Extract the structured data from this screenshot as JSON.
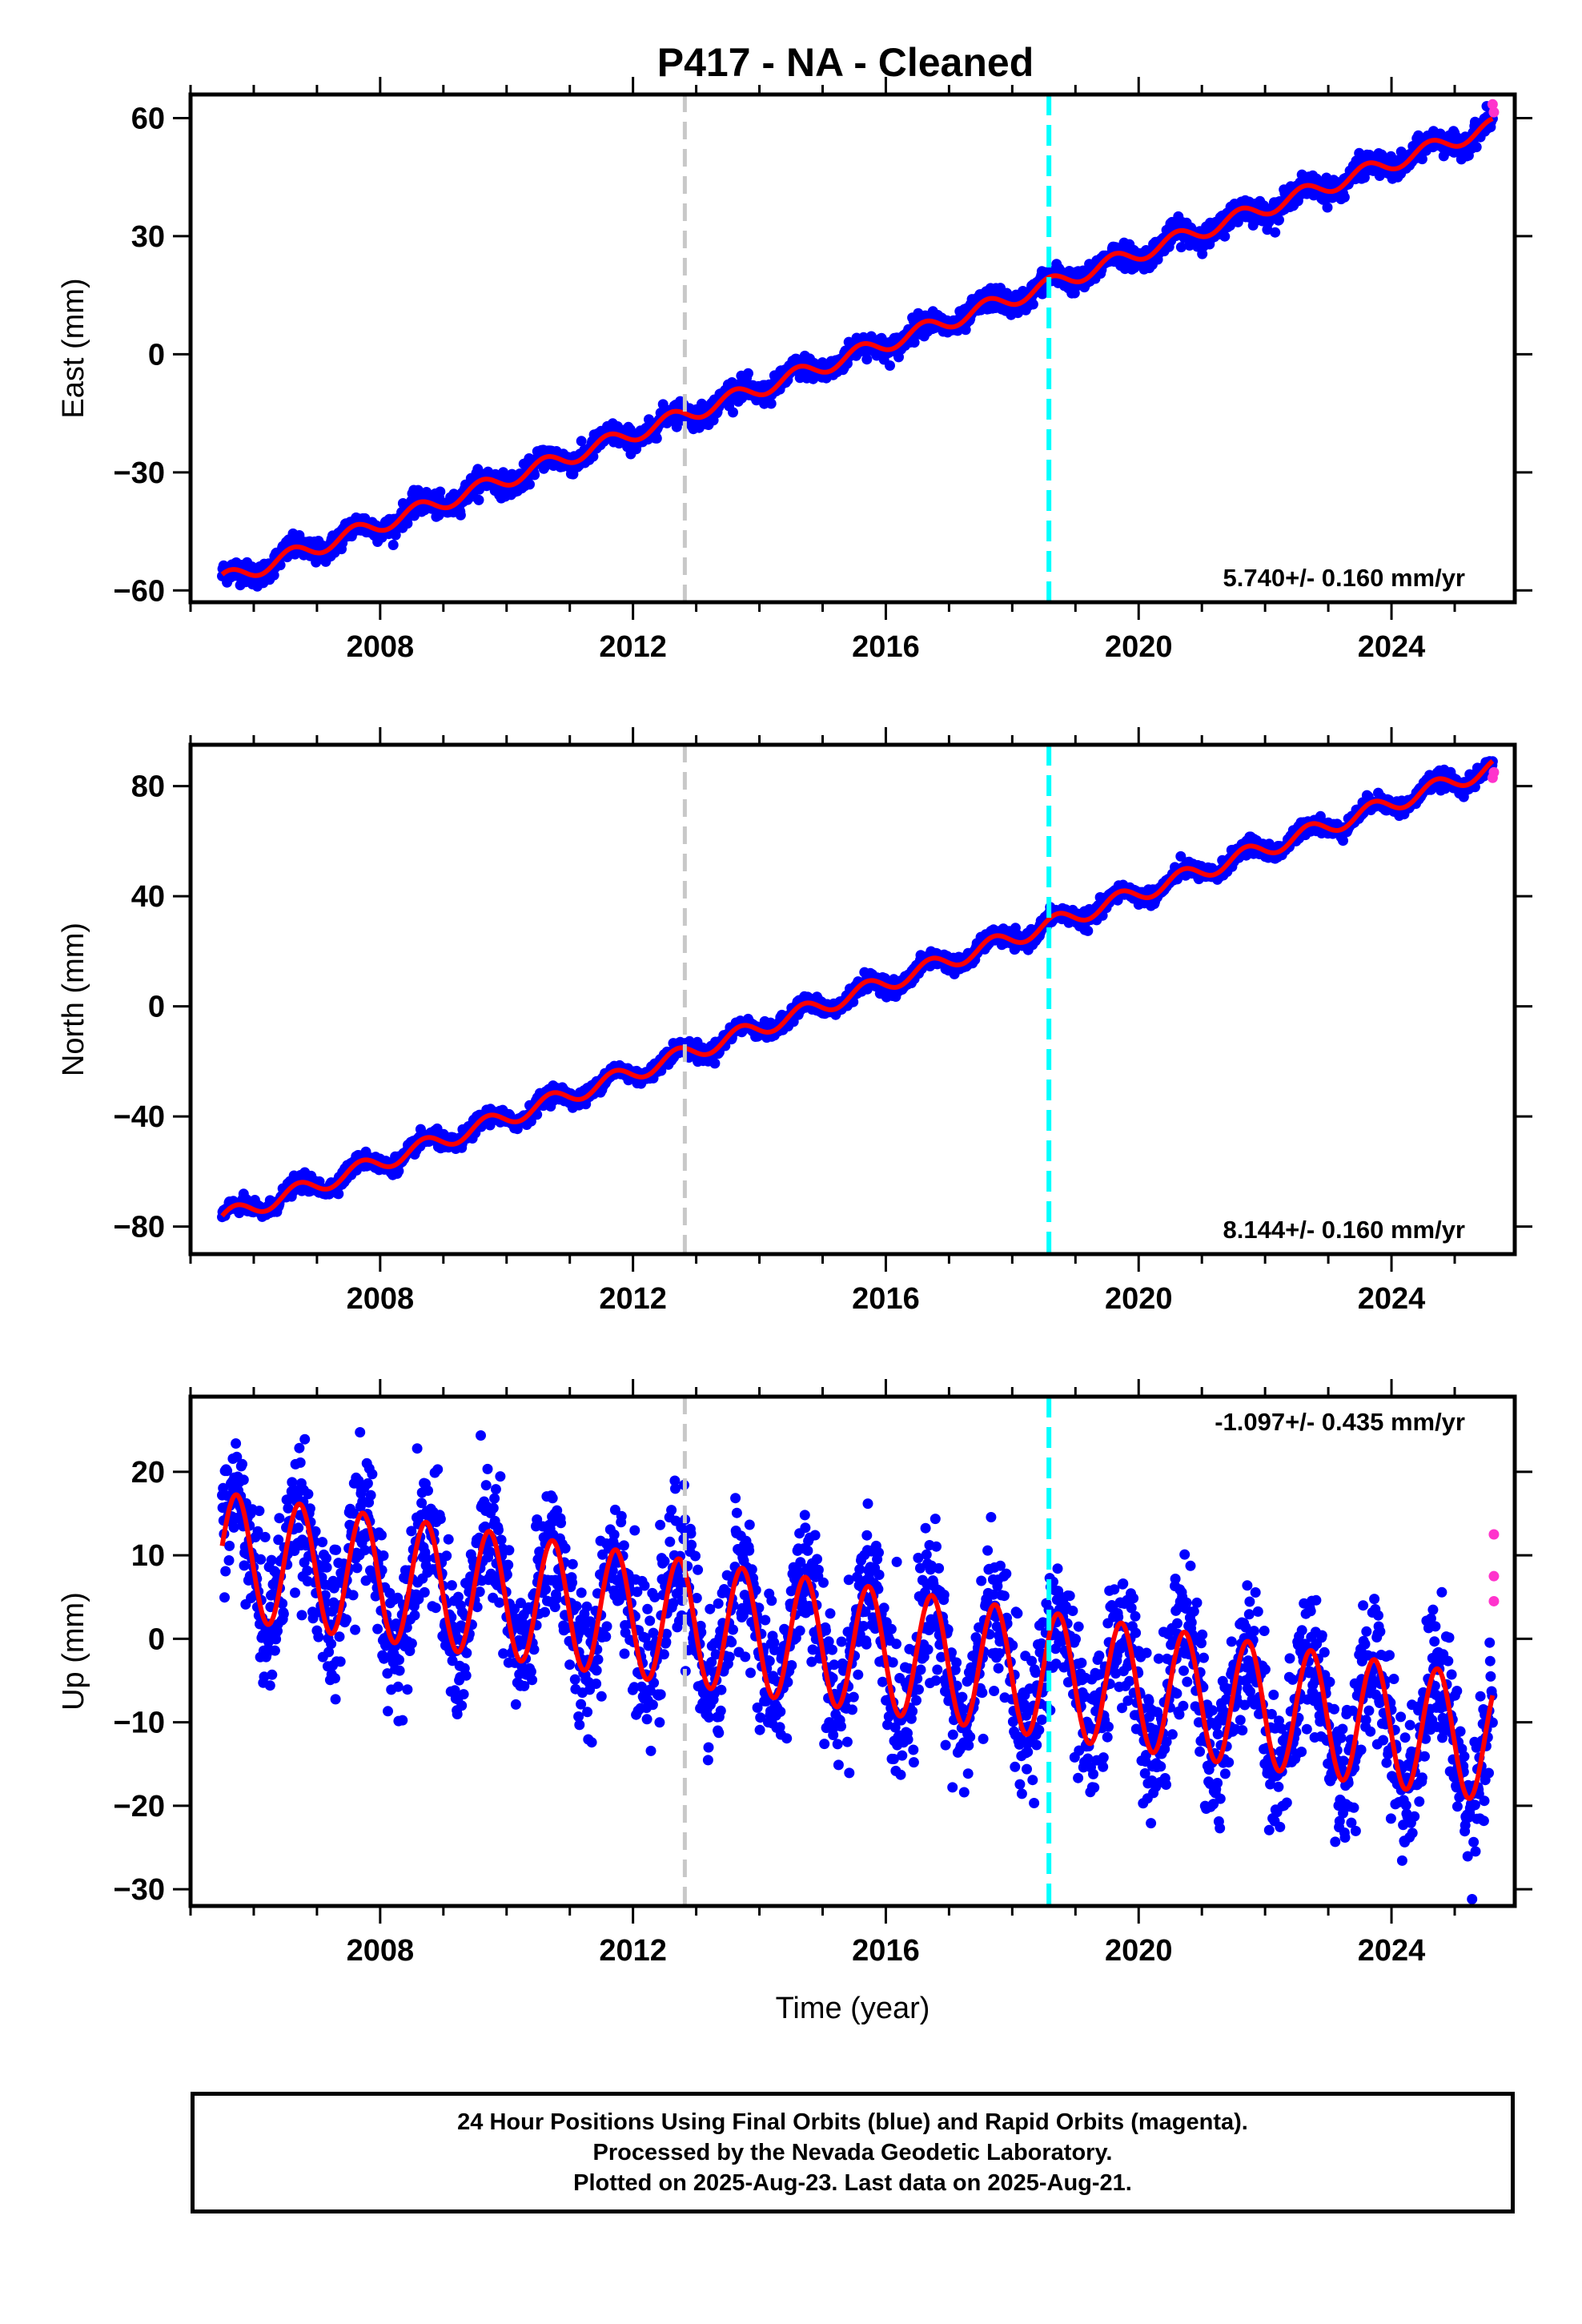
{
  "title": "P417  - NA - Cleaned",
  "footer": {
    "line1": "24 Hour Positions Using Final Orbits (blue) and Rapid Orbits (magenta).",
    "line2": "Processed by the Nevada Geodetic Laboratory.",
    "line3": "Plotted on 2025-Aug-23. Last data on 2025-Aug-21."
  },
  "colors": {
    "final_orbits": "#0000ff",
    "rapid_orbits": "#ff33cc",
    "model": "#ff0000",
    "event_gray": "#c8c8c8",
    "event_cyan": "#00ffff"
  },
  "chart_data": [
    {
      "type": "scatter",
      "component": "east",
      "ylabel": "East (mm)",
      "xlim": [
        2005.0,
        2025.95
      ],
      "ylim": [
        -63,
        66
      ],
      "yticks": [
        -60,
        -30,
        0,
        30,
        60
      ],
      "xticks": [
        2008,
        2012,
        2016,
        2020,
        2024
      ],
      "rate_label": "5.740+/- 0.160 mm/yr",
      "model": {
        "start": 2005.5,
        "end": 2025.6,
        "v0": -57.5,
        "rate": 5.74,
        "annual_amp": 2.0,
        "phase": 0.9
      },
      "event_lines": [
        2012.82,
        2018.58
      ],
      "rapid_points": [
        {
          "x": 2025.6,
          "y": 63.5
        },
        {
          "x": 2025.62,
          "y": 61.5
        }
      ]
    },
    {
      "type": "scatter",
      "component": "north",
      "ylabel": "North (mm)",
      "xlim": [
        2005.0,
        2025.95
      ],
      "ylim": [
        -90,
        95
      ],
      "yticks": [
        -80,
        -40,
        0,
        40,
        80
      ],
      "xticks": [
        2008,
        2012,
        2016,
        2020,
        2024
      ],
      "rate_label": "8.144+/- 0.160 mm/yr",
      "model": {
        "start": 2005.5,
        "end": 2025.6,
        "v0": -77.0,
        "rate": 8.144,
        "annual_amp": 3.0,
        "phase": 0.3
      },
      "event_lines": [
        2012.82,
        2018.58
      ],
      "rapid_points": [
        {
          "x": 2025.6,
          "y": 83.0
        },
        {
          "x": 2025.62,
          "y": 85.0
        }
      ]
    },
    {
      "type": "scatter",
      "component": "up",
      "ylabel": "Up (mm)",
      "xlabel": "Time (year)",
      "xlim": [
        2005.0,
        2025.95
      ],
      "ylim": [
        -32,
        29
      ],
      "yticks": [
        -30,
        -20,
        -10,
        0,
        10,
        20
      ],
      "xticks": [
        2008,
        2012,
        2016,
        2020,
        2024
      ],
      "rate_label": "-1.097+/- 0.435 mm/yr",
      "model": {
        "start": 2005.5,
        "end": 2025.6,
        "v0": 10.0,
        "rate": -1.097,
        "annual_amp": 7.5,
        "phase": 0.15
      },
      "event_lines": [
        2012.82,
        2018.58
      ],
      "rapid_points": [
        {
          "x": 2025.62,
          "y": 12.5
        },
        {
          "x": 2025.62,
          "y": 7.5
        },
        {
          "x": 2025.62,
          "y": 4.5
        }
      ]
    }
  ]
}
